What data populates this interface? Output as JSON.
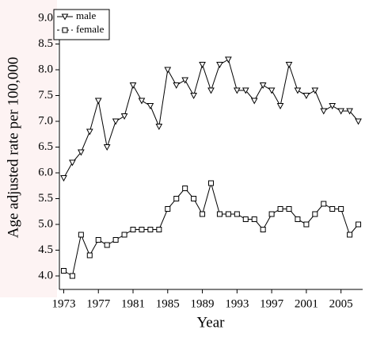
{
  "chart_data": {
    "type": "line",
    "xlabel": "Year",
    "ylabel": "Age adjusted rate per 100,000",
    "x": [
      1973,
      1974,
      1975,
      1976,
      1977,
      1978,
      1979,
      1980,
      1981,
      1982,
      1983,
      1984,
      1985,
      1986,
      1987,
      1988,
      1989,
      1990,
      1991,
      1992,
      1993,
      1994,
      1995,
      1996,
      1997,
      1998,
      1999,
      2000,
      2001,
      2002,
      2003,
      2004,
      2005,
      2006,
      2007
    ],
    "series": [
      {
        "name": "male",
        "color": "#000000",
        "marker": "triangle-down",
        "values": [
          5.9,
          6.2,
          6.4,
          6.8,
          7.4,
          6.5,
          7.0,
          7.1,
          7.7,
          7.4,
          7.3,
          6.9,
          8.0,
          7.7,
          7.8,
          7.5,
          8.1,
          7.6,
          8.1,
          8.2,
          7.6,
          7.6,
          7.4,
          7.7,
          7.6,
          7.3,
          8.1,
          7.6,
          7.5,
          7.6,
          7.2,
          7.3,
          7.2,
          7.2,
          7.0
        ]
      },
      {
        "name": "female",
        "color": "#000000",
        "marker": "square",
        "values": [
          4.1,
          4.0,
          4.8,
          4.4,
          4.7,
          4.6,
          4.7,
          4.8,
          4.9,
          4.9,
          4.9,
          4.9,
          5.3,
          5.5,
          5.7,
          5.5,
          5.2,
          5.8,
          5.2,
          5.2,
          5.2,
          5.1,
          5.1,
          4.9,
          5.2,
          5.3,
          5.3,
          5.1,
          5.0,
          5.2,
          5.4,
          5.3,
          5.3,
          4.8,
          5.0
        ]
      }
    ],
    "xlim": [
      1972.5,
      2007.5
    ],
    "xticks": [
      1973,
      1977,
      1981,
      1985,
      1989,
      1993,
      1997,
      2001,
      2005
    ],
    "ylim": [
      4.0,
      9.0
    ],
    "yticks": [
      {
        "value": 4,
        "label": "4.0"
      },
      4.5,
      {
        "value": 5,
        "label": "5.0"
      },
      5.5,
      {
        "value": 6,
        "label": "6.0"
      },
      6.5,
      {
        "value": 7,
        "label": "7.0"
      },
      7.5,
      {
        "value": 8,
        "label": "8.0"
      },
      8.5,
      {
        "value": 9,
        "label": "9.0"
      }
    ],
    "legend": "upper left",
    "grid": false
  }
}
